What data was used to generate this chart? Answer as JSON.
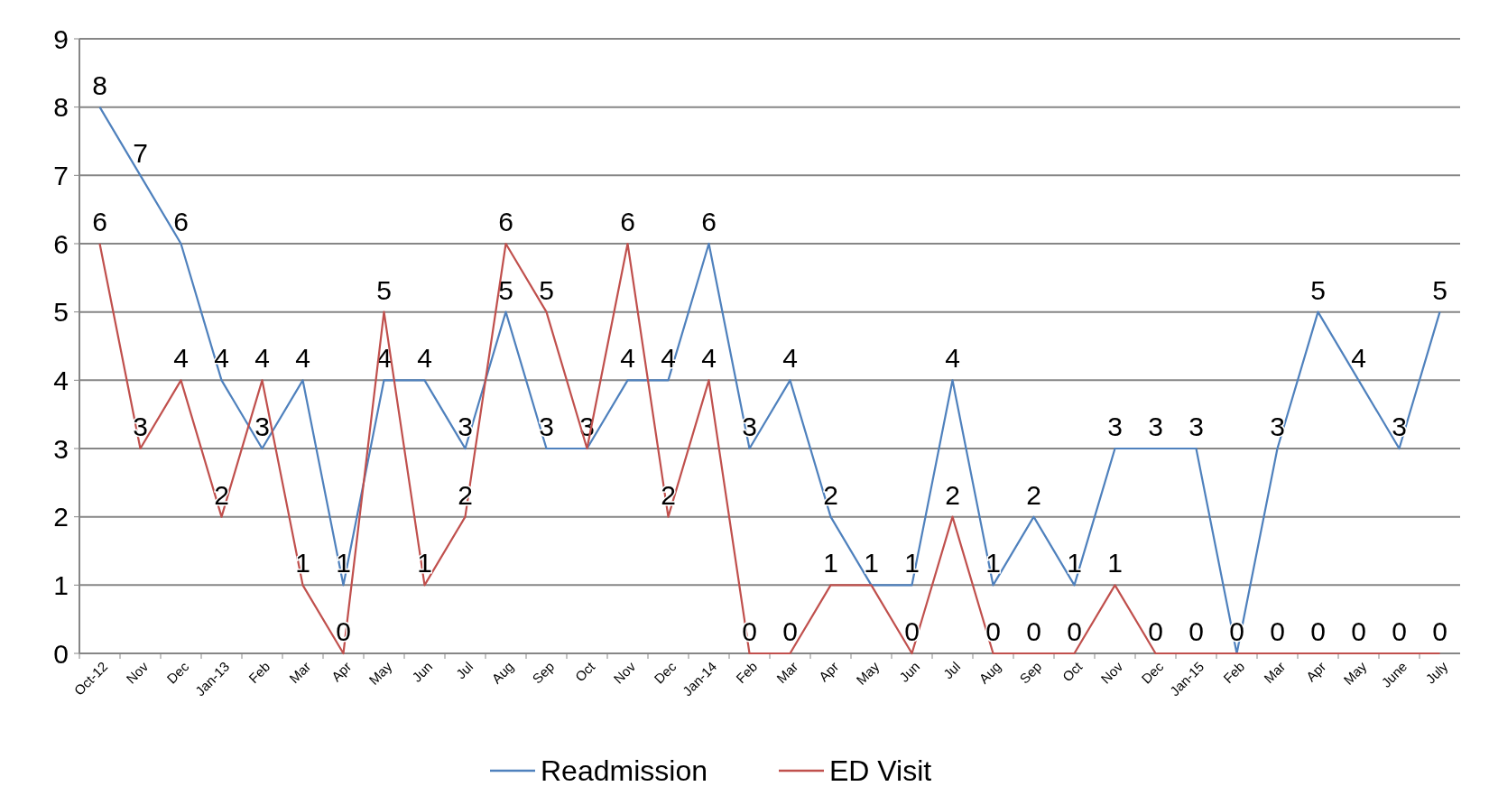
{
  "chart_data": {
    "type": "line",
    "categories": [
      "Oct-12",
      "Nov",
      "Dec",
      "Jan-13",
      "Feb",
      "Mar",
      "Apr",
      "May",
      "Jun",
      "Jul",
      "Aug",
      "Sep",
      "Oct",
      "Nov",
      "Dec",
      "Jan-14",
      "Feb",
      "Mar",
      "Apr",
      "May",
      "Jun",
      "Jul",
      "Aug",
      "Sep",
      "Oct",
      "Nov",
      "Dec",
      "Jan-15",
      "Feb",
      "Mar",
      "Apr",
      "May",
      "June",
      "July"
    ],
    "series": [
      {
        "name": "Readmission",
        "color": "#4f81bd",
        "values": [
          8,
          7,
          6,
          4,
          3,
          4,
          1,
          4,
          4,
          3,
          5,
          3,
          3,
          4,
          4,
          6,
          3,
          4,
          2,
          1,
          1,
          4,
          1,
          2,
          1,
          3,
          3,
          3,
          0,
          3,
          5,
          4,
          3,
          5
        ]
      },
      {
        "name": "ED Visit",
        "color": "#c0504d",
        "values": [
          6,
          3,
          4,
          2,
          4,
          1,
          0,
          5,
          1,
          2,
          6,
          5,
          3,
          6,
          2,
          4,
          0,
          0,
          1,
          1,
          0,
          2,
          0,
          0,
          0,
          1,
          0,
          0,
          0,
          0,
          0,
          0,
          0,
          0
        ],
        "value_labels": [
          "6",
          "3",
          "4",
          "2",
          "4",
          "1",
          "0",
          "5",
          "1",
          "2",
          "6",
          "5",
          null,
          "6",
          "2",
          "4",
          "0",
          "0",
          "1",
          null,
          "0",
          "2",
          "0",
          "0",
          "0",
          "1",
          "0",
          "0",
          null,
          "0",
          "0",
          "0",
          "0",
          "0"
        ]
      }
    ],
    "ylim": [
      0,
      9
    ],
    "yticks": [
      0,
      1,
      2,
      3,
      4,
      5,
      6,
      7,
      8,
      9
    ],
    "grid": "y",
    "legend": "bottom",
    "data_labels": true,
    "marker": "none",
    "line_style": "solid"
  }
}
